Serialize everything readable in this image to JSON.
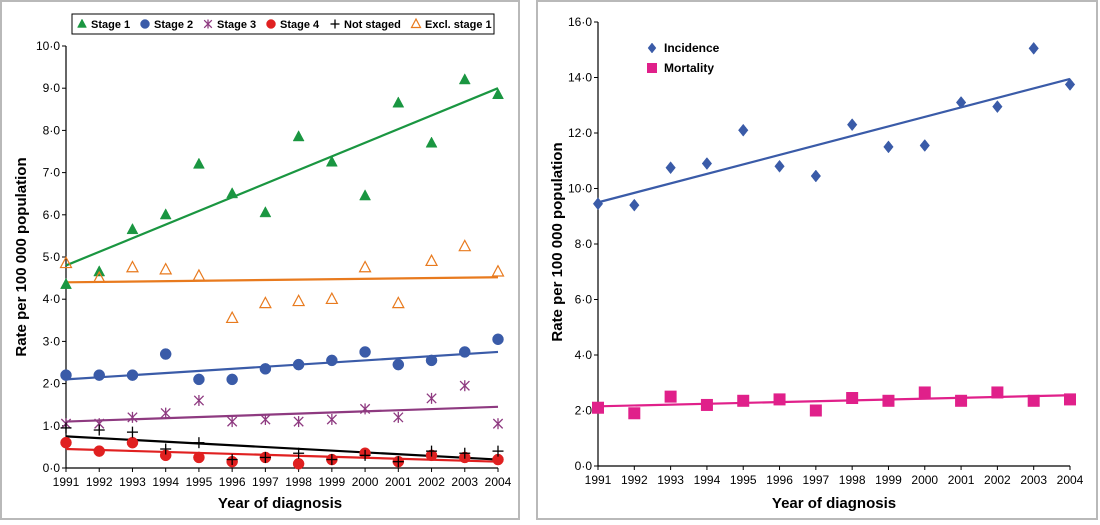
{
  "chart_data": [
    {
      "type": "scatter",
      "title": "",
      "xlabel": "Year of diagnosis",
      "ylabel": "Rate per 100 000 population",
      "xlim": [
        1991,
        2004
      ],
      "ylim": [
        0,
        10
      ],
      "x": [
        1991,
        1992,
        1993,
        1994,
        1995,
        1996,
        1997,
        1998,
        1999,
        2000,
        2001,
        2002,
        2003,
        2004
      ],
      "x_tick_labels": [
        "1991",
        "1992",
        "1993",
        "1994",
        "1995",
        "1996",
        "1997",
        "1998",
        "1999",
        "2000",
        "2001",
        "2002",
        "2003",
        "2004"
      ],
      "y_ticks": [
        0,
        1,
        2,
        3,
        4,
        5,
        6,
        7,
        8,
        9,
        10
      ],
      "y_tick_labels": [
        "0·0",
        "1·0",
        "2·0",
        "3·0",
        "4·0",
        "5·0",
        "6·0",
        "7·0",
        "8·0",
        "9·0",
        "10·0"
      ],
      "grid": false,
      "legend_position": "top",
      "series": [
        {
          "name": "Stage 1",
          "marker": "triangle",
          "color": "#1a9641",
          "values": [
            4.35,
            4.65,
            5.65,
            6.0,
            7.2,
            6.5,
            6.05,
            7.85,
            7.25,
            6.45,
            8.65,
            7.7,
            9.2,
            8.85
          ],
          "trend": [
            4.8,
            9.0
          ]
        },
        {
          "name": "Stage 2",
          "marker": "circle",
          "color": "#3a5ba8",
          "values": [
            2.2,
            2.2,
            2.2,
            2.7,
            2.1,
            2.1,
            2.35,
            2.45,
            2.55,
            2.75,
            2.45,
            2.55,
            2.75,
            3.05
          ],
          "trend": [
            2.1,
            2.75
          ]
        },
        {
          "name": "Stage 3",
          "marker": "star",
          "color": "#8e3a80",
          "values": [
            1.05,
            1.05,
            1.2,
            1.3,
            1.6,
            1.1,
            1.15,
            1.1,
            1.15,
            1.4,
            1.2,
            1.65,
            1.95,
            1.05
          ],
          "trend": [
            1.1,
            1.45
          ]
        },
        {
          "name": "Stage 4",
          "marker": "circle",
          "color": "#e02020",
          "values": [
            0.6,
            0.4,
            0.6,
            0.3,
            0.25,
            0.15,
            0.25,
            0.1,
            0.2,
            0.35,
            0.15,
            0.3,
            0.25,
            0.2
          ],
          "trend": [
            0.45,
            0.15
          ]
        },
        {
          "name": "Not staged",
          "marker": "plus",
          "color": "#000000",
          "values": [
            0.95,
            0.9,
            0.85,
            0.45,
            0.6,
            0.2,
            0.25,
            0.35,
            0.2,
            0.3,
            0.15,
            0.4,
            0.35,
            0.4
          ],
          "trend": [
            0.75,
            0.2
          ]
        },
        {
          "name": "Excl. stage 1",
          "marker": "triangle-open",
          "color": "#e87a1e",
          "values": [
            4.85,
            4.5,
            4.75,
            4.7,
            4.55,
            3.55,
            3.9,
            3.95,
            4.0,
            4.75,
            3.9,
            4.9,
            5.25,
            4.65
          ],
          "trend": [
            4.4,
            4.52
          ]
        }
      ]
    },
    {
      "type": "scatter",
      "title": "",
      "xlabel": "Year of diagnosis",
      "ylabel": "Rate per 100 000 population",
      "xlim": [
        1991,
        2004
      ],
      "ylim": [
        0,
        16
      ],
      "x": [
        1991,
        1992,
        1993,
        1994,
        1995,
        1996,
        1997,
        1998,
        1999,
        2000,
        2001,
        2002,
        2003,
        2004
      ],
      "x_tick_labels": [
        "1991",
        "1992",
        "1993",
        "1994",
        "1995",
        "1996",
        "1997",
        "1998",
        "1999",
        "2000",
        "2001",
        "2002",
        "2003",
        "2004"
      ],
      "y_ticks": [
        0,
        2,
        4,
        6,
        8,
        10,
        12,
        14,
        16
      ],
      "y_tick_labels": [
        "0·0",
        "2·0",
        "4·0",
        "6·0",
        "8·0",
        "10·0",
        "12·0",
        "14·0",
        "16·0"
      ],
      "grid": false,
      "legend_position": "top-left",
      "series": [
        {
          "name": "Incidence",
          "marker": "diamond",
          "color": "#3a5ba8",
          "values": [
            9.45,
            9.4,
            10.75,
            10.9,
            12.1,
            10.8,
            10.45,
            12.3,
            11.5,
            11.55,
            13.1,
            12.95,
            15.05,
            13.75
          ],
          "trend": [
            9.5,
            13.95
          ]
        },
        {
          "name": "Mortality",
          "marker": "square",
          "color": "#e0208a",
          "values": [
            2.1,
            1.9,
            2.5,
            2.2,
            2.35,
            2.4,
            2.0,
            2.45,
            2.35,
            2.65,
            2.35,
            2.65,
            2.35,
            2.4
          ],
          "trend": [
            2.15,
            2.55
          ]
        }
      ]
    }
  ]
}
